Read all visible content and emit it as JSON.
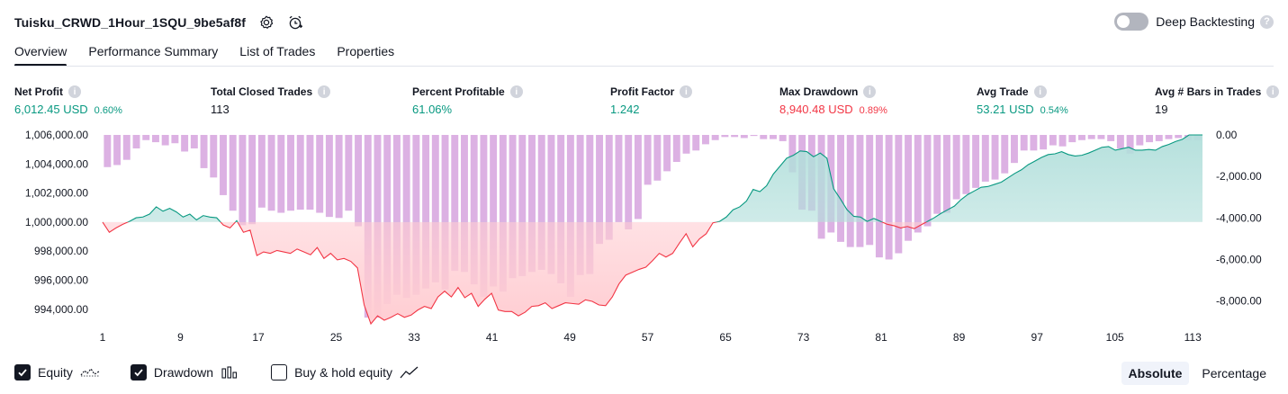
{
  "header": {
    "title": "Tuisku_CRWD_1Hour_1SQU_9be5af8f",
    "deep_backtesting_label": "Deep Backtesting",
    "deep_backtesting_enabled": false
  },
  "tabs": [
    {
      "label": "Overview",
      "active": true
    },
    {
      "label": "Performance Summary",
      "active": false
    },
    {
      "label": "List of Trades",
      "active": false
    },
    {
      "label": "Properties",
      "active": false
    }
  ],
  "metrics": {
    "net_profit": {
      "label": "Net Profit",
      "value": "6,012.45 USD",
      "pct": "0.60%"
    },
    "total_closed_trades": {
      "label": "Total Closed Trades",
      "value": "113"
    },
    "percent_profitable": {
      "label": "Percent Profitable",
      "value": "61.06%"
    },
    "profit_factor": {
      "label": "Profit Factor",
      "value": "1.242"
    },
    "max_drawdown": {
      "label": "Max Drawdown",
      "value": "8,940.48 USD",
      "pct": "0.89%"
    },
    "avg_trade": {
      "label": "Avg Trade",
      "value": "53.21 USD",
      "pct": "0.54%"
    },
    "avg_bars": {
      "label": "Avg # Bars in Trades",
      "value": "19"
    }
  },
  "legend": {
    "equity": {
      "label": "Equity",
      "checked": true
    },
    "drawdown": {
      "label": "Drawdown",
      "checked": true
    },
    "buy_hold": {
      "label": "Buy & hold equity",
      "checked": false
    }
  },
  "mode": {
    "absolute": "Absolute",
    "percentage": "Percentage",
    "active": "absolute"
  },
  "colors": {
    "equity_positive": "#089981",
    "equity_negative": "#f23645",
    "drawdown_bar": "#ce93d8",
    "positive_fill": "#b2dfdb",
    "negative_fill": "#ffcdd2",
    "text": "#131722"
  },
  "chart_data": {
    "type": "area",
    "base_value": 1000000,
    "x_ticks": [
      1,
      9,
      17,
      25,
      33,
      41,
      49,
      57,
      65,
      73,
      81,
      89,
      97,
      105,
      113
    ],
    "left_axis": {
      "ticks": [
        "1,006,000.00",
        "1,004,000.00",
        "1,002,000.00",
        "1,000,000.00",
        "998,000.00",
        "996,000.00",
        "994,000.00"
      ],
      "range": [
        993000,
        1006000
      ]
    },
    "right_axis": {
      "ticks": [
        "0.00",
        "-2,000.00",
        "-4,000.00",
        "-6,000.00",
        "-8,000.00"
      ],
      "range": [
        -9100,
        0
      ]
    },
    "series": [
      {
        "name": "Equity",
        "axis": "left",
        "values": [
          1000000,
          999300,
          999600,
          999850,
          1000050,
          1000300,
          1000350,
          1000550,
          1001050,
          1000750,
          1000950,
          1000700,
          1000350,
          1000550,
          1000150,
          1000450,
          1000350,
          1000300,
          999800,
          999600,
          1000100,
          999300,
          999450,
          997700,
          997950,
          997850,
          998050,
          997950,
          997850,
          998150,
          997950,
          997750,
          998250,
          997500,
          997850,
          997400,
          997500,
          997300,
          996850,
          994300,
          993000,
          993550,
          993250,
          993450,
          993700,
          993450,
          993600,
          993950,
          994200,
          994050,
          994850,
          995250,
          994850,
          995500,
          994800,
          995100,
          994200,
          994700,
          995100,
          993950,
          993850,
          993850,
          993550,
          993800,
          994200,
          994250,
          994450,
          994050,
          994250,
          994450,
          994400,
          994350,
          994650,
          994550,
          994300,
          994250,
          994850,
          995750,
          996350,
          996550,
          996750,
          996900,
          997350,
          997850,
          997600,
          997850,
          998550,
          999200,
          998300,
          998850,
          999200,
          999950,
          1000050,
          1000350,
          1000850,
          1001050,
          1001450,
          1002250,
          1002100,
          1002500,
          1003300,
          1003850,
          1004400,
          1004600,
          1004900,
          1004850,
          1004500,
          1004750,
          1004400,
          1002300,
          1001600,
          1000850,
          1000400,
          1000350,
          1000050,
          1000250,
          1000050,
          999850,
          999750,
          999600,
          999700,
          999550,
          999800,
          1000050,
          1000300,
          1000600,
          1000850,
          1001100,
          1001550,
          1001900,
          1002150,
          1002400,
          1002450,
          1002600,
          1002750,
          1003050,
          1003350,
          1003600,
          1003950,
          1004200,
          1004450,
          1004650,
          1004700,
          1004850,
          1004650,
          1004550,
          1004600,
          1004750,
          1004950,
          1005150,
          1005200,
          1004950,
          1005050,
          1005150,
          1004950,
          1004950,
          1005000,
          1004950,
          1005200,
          1005350,
          1005550,
          1005700,
          1006000,
          1006000,
          1006000
        ]
      },
      {
        "name": "Drawdown",
        "axis": "right",
        "values": [
          -1550,
          -1450,
          -1200,
          -650,
          -250,
          -350,
          -500,
          -400,
          -800,
          -650,
          -1600,
          -2050,
          -2900,
          -3650,
          -4350,
          -4300,
          -3500,
          -3650,
          -3750,
          -3650,
          -3600,
          -3600,
          -3750,
          -3950,
          -4000,
          -3650,
          -4400,
          -8800,
          -8800,
          -8150,
          -7700,
          -7850,
          -7700,
          -7400,
          -7100,
          -7450,
          -6550,
          -6600,
          -7200,
          -7800,
          -7300,
          -7550,
          -6900,
          -6800,
          -6600,
          -6500,
          -6700,
          -7150,
          -7800,
          -6750,
          -6700,
          -5250,
          -5050,
          -4200,
          -4550,
          -4050,
          -2400,
          -2200,
          -1750,
          -1300,
          -900,
          -750,
          -450,
          -250,
          -100,
          -100,
          -150,
          -50,
          -200,
          -200,
          -300,
          -1800,
          -3600,
          -3650,
          -5000,
          -4700,
          -5150,
          -5400,
          -5400,
          -5300,
          -5900,
          -6000,
          -5700,
          -5100,
          -4700,
          -4400,
          -3800,
          -3750,
          -3100,
          -2850,
          -2550,
          -2250,
          -2150,
          -1850,
          -1350,
          -750,
          -750,
          -700,
          -500,
          -550,
          -350,
          -250,
          -200,
          -200,
          -300,
          -650,
          -900,
          -500,
          -350,
          -300,
          -200,
          -150,
          -250,
          -250
        ]
      }
    ]
  }
}
